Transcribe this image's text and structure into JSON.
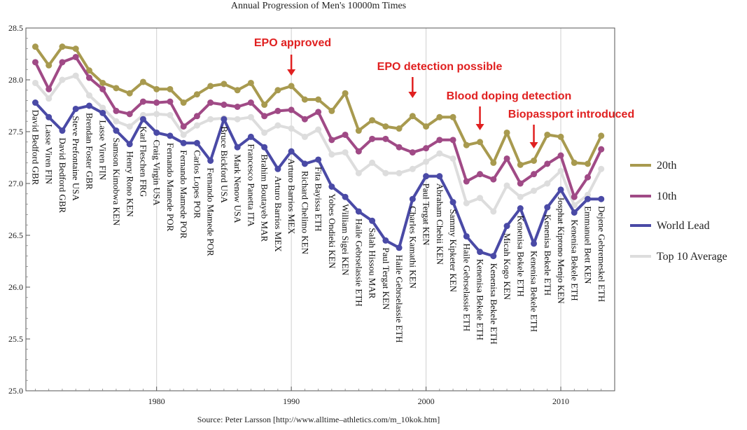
{
  "chart_data": {
    "type": "line",
    "title": "Annual Progression of  Men's 10000m Times",
    "source": "Source: Peter Larsson [http://www.alltime–athletics.com/m_10kok.htm]",
    "xlim": [
      1970.3,
      2014
    ],
    "ylim": [
      25.0,
      28.5
    ],
    "x_ticks": [
      1980,
      1990,
      2000,
      2010
    ],
    "y_ticks": [
      "25.0",
      "25.5",
      "26.0",
      "26.5",
      "27.0",
      "27.5",
      "28.0",
      "28.5"
    ],
    "y_tick_values": [
      25.0,
      25.5,
      26.0,
      26.5,
      27.0,
      27.5,
      28.0,
      28.5
    ],
    "years": [
      1971,
      1972,
      1973,
      1974,
      1975,
      1976,
      1977,
      1978,
      1979,
      1980,
      1981,
      1982,
      1983,
      1984,
      1985,
      1986,
      1987,
      1988,
      1989,
      1990,
      1991,
      1992,
      1993,
      1994,
      1995,
      1996,
      1997,
      1998,
      1999,
      2000,
      2001,
      2002,
      2003,
      2004,
      2005,
      2006,
      2007,
      2008,
      2009,
      2010,
      2011,
      2012,
      2013
    ],
    "series": [
      {
        "name": "20th",
        "color": "#a89a4f",
        "values": [
          28.32,
          28.14,
          28.32,
          28.3,
          28.09,
          27.97,
          27.92,
          27.87,
          27.98,
          27.91,
          27.91,
          27.78,
          27.86,
          27.94,
          27.96,
          27.9,
          27.97,
          27.76,
          27.9,
          27.94,
          27.81,
          27.81,
          27.7,
          27.87,
          27.51,
          27.61,
          27.55,
          27.53,
          27.65,
          27.55,
          27.64,
          27.64,
          27.37,
          27.4,
          27.2,
          27.49,
          27.18,
          27.22,
          27.47,
          27.45,
          27.2,
          27.19,
          27.46
        ]
      },
      {
        "name": "10th",
        "color": "#a04a86",
        "values": [
          28.17,
          27.91,
          28.17,
          28.22,
          28.02,
          27.91,
          27.7,
          27.67,
          27.79,
          27.78,
          27.79,
          27.55,
          27.65,
          27.78,
          27.76,
          27.74,
          27.78,
          27.65,
          27.7,
          27.71,
          27.62,
          27.69,
          27.42,
          27.47,
          27.31,
          27.43,
          27.43,
          27.35,
          27.3,
          27.34,
          27.42,
          27.42,
          27.02,
          27.09,
          27.04,
          27.24,
          27.0,
          27.09,
          27.19,
          27.27,
          26.87,
          27.06,
          27.33
        ]
      },
      {
        "name": "World Lead",
        "color": "#4a4aa6",
        "values": [
          27.78,
          27.64,
          27.51,
          27.72,
          27.75,
          27.68,
          27.51,
          27.38,
          27.62,
          27.49,
          27.46,
          27.39,
          27.39,
          27.22,
          27.62,
          27.35,
          27.45,
          27.35,
          27.14,
          27.31,
          27.19,
          27.23,
          26.97,
          26.87,
          26.73,
          26.64,
          26.45,
          26.38,
          26.85,
          27.07,
          27.07,
          26.82,
          26.49,
          26.34,
          26.3,
          26.59,
          26.76,
          26.42,
          26.77,
          26.94,
          26.72,
          26.85,
          26.85
        ]
      },
      {
        "name": "Top 10 Average",
        "color": "#dddddd",
        "values": [
          27.97,
          27.82,
          28.0,
          28.04,
          27.85,
          27.73,
          27.6,
          27.55,
          27.66,
          27.67,
          27.66,
          27.47,
          27.56,
          27.62,
          27.63,
          27.62,
          27.64,
          27.49,
          27.56,
          27.53,
          27.45,
          27.52,
          27.28,
          27.3,
          27.1,
          27.2,
          27.1,
          27.1,
          27.14,
          27.21,
          27.29,
          27.24,
          26.81,
          26.86,
          26.73,
          26.98,
          26.87,
          26.93,
          27.0,
          27.12,
          26.79,
          26.89,
          27.14
        ]
      }
    ],
    "point_labels": [
      {
        "year": 1971,
        "text": "David Bedford GBR"
      },
      {
        "year": 1972,
        "text": "Lasse Viren FIN"
      },
      {
        "year": 1973,
        "text": "David Bedford GBR"
      },
      {
        "year": 1974,
        "text": "Steve Prefontaine USA"
      },
      {
        "year": 1975,
        "text": "Brendan Foster GBR"
      },
      {
        "year": 1976,
        "text": "Lasse Viren FIN"
      },
      {
        "year": 1977,
        "text": "Samson Kimobwa KEN"
      },
      {
        "year": 1978,
        "text": "Henry Rono KEN"
      },
      {
        "year": 1979,
        "text": "Karl Fleschen FRG"
      },
      {
        "year": 1980,
        "text": "Craig Virgin USA"
      },
      {
        "year": 1981,
        "text": "Fernando Mamede POR"
      },
      {
        "year": 1982,
        "text": "Fernando Mamede POR"
      },
      {
        "year": 1983,
        "text": "Carlos Lopes POR"
      },
      {
        "year": 1984,
        "text": "Fernando Mamede POR"
      },
      {
        "year": 1985,
        "text": "Bruce Bickford USA"
      },
      {
        "year": 1986,
        "text": "Mark Nenow USA"
      },
      {
        "year": 1987,
        "text": "Francesco Panetta ITA"
      },
      {
        "year": 1988,
        "text": "Brahim Boutayeb MAR"
      },
      {
        "year": 1989,
        "text": "Arturo Barrios MEX"
      },
      {
        "year": 1990,
        "text": "Arturo Barrios MEX"
      },
      {
        "year": 1991,
        "text": "Richard Chelimo KEN"
      },
      {
        "year": 1992,
        "text": "Fita Bayissa ETH"
      },
      {
        "year": 1993,
        "text": "Yobes Ondieki KEN"
      },
      {
        "year": 1994,
        "text": "William Sigei KEN"
      },
      {
        "year": 1995,
        "text": "Haile Gebrselassie ETH"
      },
      {
        "year": 1996,
        "text": "Salah Hissou MAR"
      },
      {
        "year": 1997,
        "text": "Paul Tergat KEN"
      },
      {
        "year": 1998,
        "text": "Haile Gebrselassie ETH"
      },
      {
        "year": 1999,
        "text": "Charles Kamathi KEN"
      },
      {
        "year": 2000,
        "text": "Paul Tergat KEN"
      },
      {
        "year": 2001,
        "text": "Abraham Chebii KEN"
      },
      {
        "year": 2002,
        "text": "Sammy Kipketer KEN"
      },
      {
        "year": 2003,
        "text": "Haile Gebrselassie ETH"
      },
      {
        "year": 2004,
        "text": "Kenenisa Bekele ETH"
      },
      {
        "year": 2005,
        "text": "Kenenisa Bekele ETH"
      },
      {
        "year": 2006,
        "text": "Micah Kogo KEN"
      },
      {
        "year": 2007,
        "text": "Kenenisa Bekele ETH"
      },
      {
        "year": 2008,
        "text": "Kenenisa Bekele ETH"
      },
      {
        "year": 2009,
        "text": "Kenenisa Bekele ETH"
      },
      {
        "year": 2010,
        "text": "Josphat Kiprono Menjo KEN"
      },
      {
        "year": 2011,
        "text": "Kenenisa Bekele ETH"
      },
      {
        "year": 2012,
        "text": "Emmanuel Bett KEN"
      },
      {
        "year": 2013,
        "text": "Dejene Gebremeskel ETH"
      }
    ],
    "annotations": [
      {
        "text": "EPO approved",
        "year": 1990,
        "color": "#e02020"
      },
      {
        "text": "EPO detection possible",
        "year": 1999,
        "color": "#e02020"
      },
      {
        "text": "Blood doping detection",
        "year": 2004,
        "color": "#e02020"
      },
      {
        "text": "Biopassport introduced",
        "year": 2008,
        "color": "#e02020"
      }
    ],
    "legend_position": "right",
    "grid": "vertical lines at decades"
  }
}
